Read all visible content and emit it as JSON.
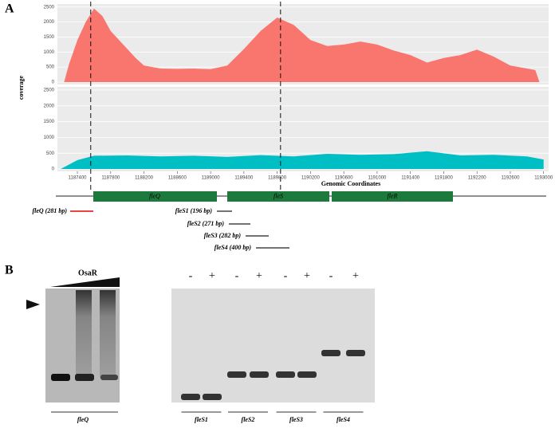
{
  "panels": {
    "a": "A",
    "b": "B"
  },
  "chart_data": [
    {
      "type": "area",
      "ylabel": "coverage",
      "x": [
        1187240,
        1187300,
        1187400,
        1187500,
        1187600,
        1187700,
        1187800,
        1187900,
        1188000,
        1188100,
        1188200,
        1188400,
        1188600,
        1188800,
        1189000,
        1189200,
        1189400,
        1189600,
        1189800,
        1190000,
        1190200,
        1190400,
        1190600,
        1190800,
        1191000,
        1191200,
        1191400,
        1191600,
        1191800,
        1192000,
        1192200,
        1192400,
        1192600,
        1192800,
        1192900,
        1192950
      ],
      "series": [
        {
          "color": "#f8766d",
          "values": [
            0,
            600,
            1400,
            2000,
            2450,
            2200,
            1700,
            1400,
            1100,
            800,
            550,
            450,
            440,
            450,
            430,
            550,
            1100,
            1700,
            2150,
            1900,
            1400,
            1200,
            1250,
            1350,
            1250,
            1050,
            900,
            650,
            800,
            900,
            1080,
            850,
            550,
            450,
            400,
            0
          ]
        }
      ],
      "xlim": [
        1187160,
        1193060
      ],
      "ylim": [
        0,
        2600
      ],
      "yticks": [
        0,
        500,
        1000,
        1500,
        2000,
        2500
      ],
      "grid": true
    },
    {
      "type": "area",
      "xlabel": "Genomic Coordinates",
      "x": [
        1187200,
        1187400,
        1187600,
        1188000,
        1188400,
        1188800,
        1189200,
        1189600,
        1190000,
        1190400,
        1190800,
        1191200,
        1191600,
        1192000,
        1192400,
        1192800,
        1193000
      ],
      "series": [
        {
          "color": "#00bfc4",
          "values": [
            0,
            280,
            420,
            430,
            400,
            420,
            380,
            440,
            400,
            480,
            450,
            470,
            560,
            430,
            450,
            400,
            300
          ]
        }
      ],
      "xlim": [
        1187160,
        1193060
      ],
      "ylim": [
        0,
        2600
      ],
      "yticks": [
        0,
        500,
        1000,
        1500,
        2000,
        2500
      ],
      "xticks": [
        1187400,
        1187800,
        1188200,
        1188600,
        1189000,
        1189400,
        1189800,
        1190200,
        1190600,
        1191000,
        1191400,
        1191800,
        1192200,
        1192600,
        1193000
      ],
      "grid": true
    }
  ],
  "dashed_lines": [
    1187560,
    1189840
  ],
  "genes": [
    "fleQ",
    "fleS",
    "fleR"
  ],
  "probes": [
    "fleQ (281 bp)",
    "fleS1 (196 bp)",
    "fleS2 (271 bp)",
    "fleS3 (282 bp)",
    "fleS4 (400 bp)"
  ],
  "gel": {
    "protein": "OsaR",
    "left_lane": "fleQ",
    "lanes": [
      "-",
      "+",
      "-",
      "+",
      "-",
      "+",
      "-",
      "+"
    ],
    "groups": [
      "fleS1",
      "fleS2",
      "fleS3",
      "fleS4"
    ]
  }
}
